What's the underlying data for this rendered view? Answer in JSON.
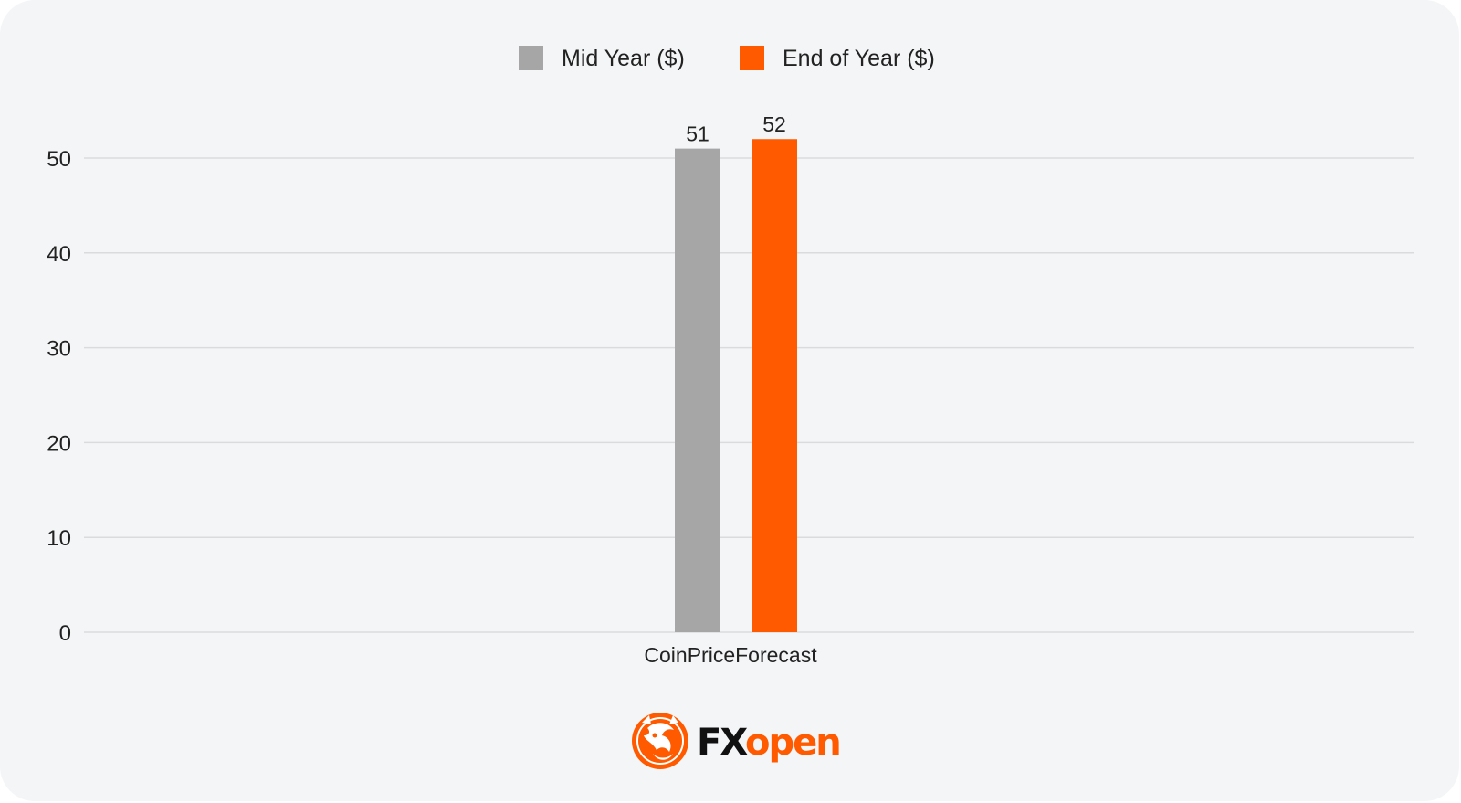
{
  "chart_data": {
    "type": "bar",
    "categories": [
      "CoinPriceForecast"
    ],
    "series": [
      {
        "name": "Mid Year ($)",
        "values": [
          51
        ],
        "color": "#a6a6a6"
      },
      {
        "name": "End of Year ($)",
        "values": [
          52
        ],
        "color": "#ff5a00"
      }
    ],
    "data_labels": [
      "51",
      "52"
    ],
    "yticks": [
      0,
      10,
      20,
      30,
      40,
      50
    ],
    "ylim": [
      0,
      50
    ],
    "grid": true,
    "legend_position": "top-center",
    "title": "",
    "xlabel": "",
    "ylabel": ""
  },
  "brand": {
    "name_part1": "FX",
    "name_part2": "open",
    "accent_color": "#ff5a00",
    "logo_icon": "bull-bear-emblem-icon"
  }
}
